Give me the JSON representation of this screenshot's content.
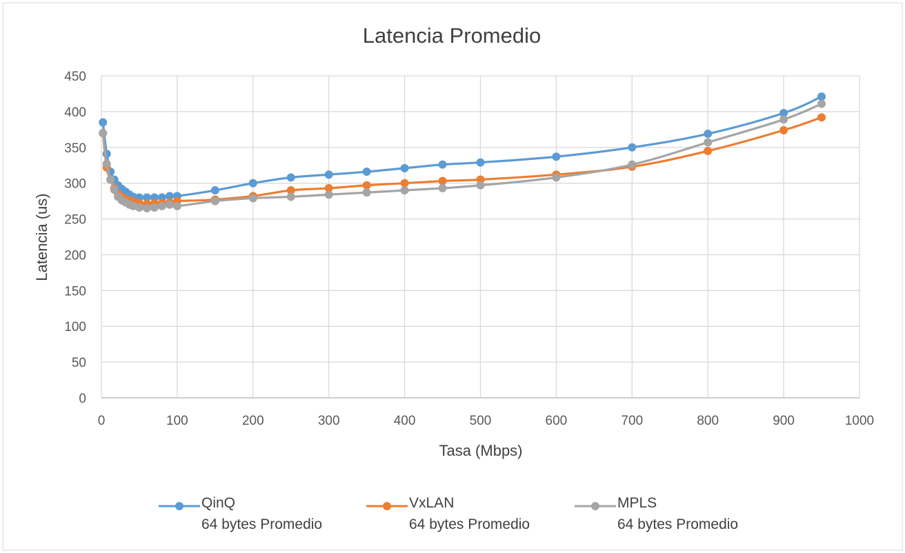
{
  "chart_data": {
    "type": "line",
    "title": "Latencia Promedio",
    "xlabel": "Tasa (Mbps)",
    "ylabel": "Latencia (us)",
    "xlim": [
      0,
      1000
    ],
    "ylim": [
      0,
      450
    ],
    "xticks": [
      0,
      100,
      200,
      300,
      400,
      500,
      600,
      700,
      800,
      900,
      1000
    ],
    "yticks": [
      0,
      50,
      100,
      150,
      200,
      250,
      300,
      350,
      400,
      450
    ],
    "grid": true,
    "legend_position": "bottom",
    "series": [
      {
        "name": "QinQ\n64 bytes Promedio",
        "color": "#5B9BD5",
        "points": [
          [
            2,
            385
          ],
          [
            7,
            341
          ],
          [
            12,
            316
          ],
          [
            17,
            305
          ],
          [
            22,
            297
          ],
          [
            27,
            292
          ],
          [
            32,
            288
          ],
          [
            37,
            284
          ],
          [
            42,
            281
          ],
          [
            50,
            280
          ],
          [
            60,
            280
          ],
          [
            70,
            280
          ],
          [
            80,
            280
          ],
          [
            90,
            282
          ],
          [
            100,
            282
          ],
          [
            150,
            290
          ],
          [
            200,
            300
          ],
          [
            250,
            308
          ],
          [
            300,
            312
          ],
          [
            350,
            316
          ],
          [
            400,
            321
          ],
          [
            450,
            326
          ],
          [
            500,
            329
          ],
          [
            600,
            337
          ],
          [
            700,
            350
          ],
          [
            800,
            369
          ],
          [
            900,
            398
          ],
          [
            950,
            421
          ]
        ]
      },
      {
        "name": "VxLAN\n64 bytes Promedio",
        "color": "#ED7D31",
        "points": [
          [
            2,
            370
          ],
          [
            7,
            322
          ],
          [
            12,
            305
          ],
          [
            17,
            293
          ],
          [
            22,
            285
          ],
          [
            27,
            281
          ],
          [
            32,
            278
          ],
          [
            37,
            276
          ],
          [
            42,
            274
          ],
          [
            50,
            272
          ],
          [
            60,
            271
          ],
          [
            70,
            272
          ],
          [
            80,
            272
          ],
          [
            90,
            273
          ],
          [
            100,
            275
          ],
          [
            150,
            277
          ],
          [
            200,
            282
          ],
          [
            250,
            290
          ],
          [
            300,
            293
          ],
          [
            350,
            297
          ],
          [
            400,
            300
          ],
          [
            450,
            303
          ],
          [
            500,
            305
          ],
          [
            600,
            312
          ],
          [
            700,
            323
          ],
          [
            800,
            345
          ],
          [
            900,
            374
          ],
          [
            950,
            392
          ]
        ]
      },
      {
        "name": "MPLS\n64 bytes Promedio",
        "color": "#A5A5A5",
        "points": [
          [
            2,
            370
          ],
          [
            7,
            327
          ],
          [
            12,
            305
          ],
          [
            17,
            291
          ],
          [
            22,
            281
          ],
          [
            27,
            276
          ],
          [
            32,
            273
          ],
          [
            37,
            270
          ],
          [
            42,
            268
          ],
          [
            50,
            266
          ],
          [
            60,
            265
          ],
          [
            70,
            266
          ],
          [
            80,
            268
          ],
          [
            90,
            270
          ],
          [
            100,
            268
          ],
          [
            150,
            275
          ],
          [
            200,
            279
          ],
          [
            250,
            281
          ],
          [
            300,
            284
          ],
          [
            350,
            287
          ],
          [
            400,
            290
          ],
          [
            450,
            293
          ],
          [
            500,
            297
          ],
          [
            600,
            308
          ],
          [
            700,
            326
          ],
          [
            800,
            357
          ],
          [
            900,
            389
          ],
          [
            950,
            411
          ]
        ]
      }
    ]
  }
}
